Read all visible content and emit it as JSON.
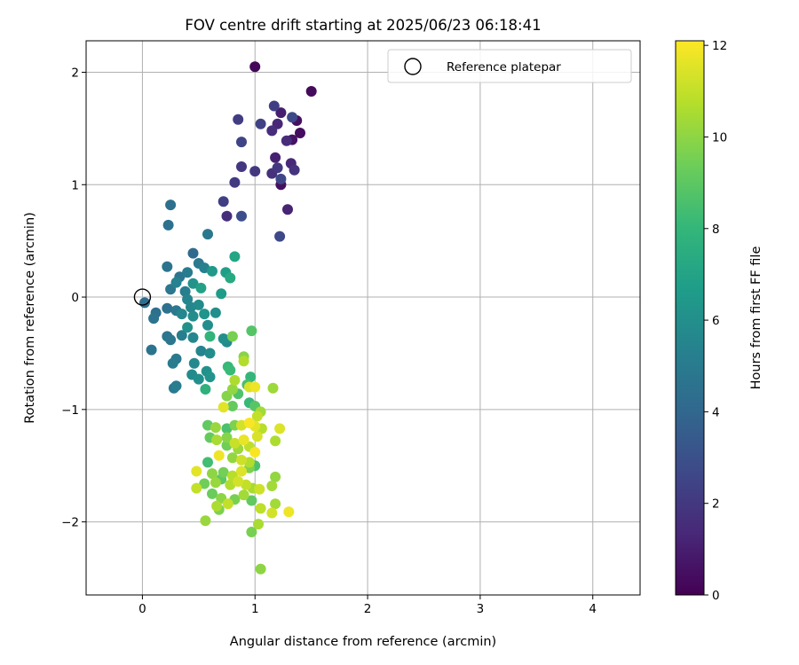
{
  "chart_data": {
    "type": "scatter",
    "title": "FOV centre drift starting at 2025/06/23 06:18:41",
    "xlabel": "Angular distance from reference (arcmin)",
    "ylabel": "Rotation from reference (arcmin)",
    "xlim": [
      -0.5,
      4.42
    ],
    "ylim": [
      -2.65,
      2.28
    ],
    "xticks": [
      0,
      1,
      2,
      3,
      4
    ],
    "yticks": [
      -2,
      -1,
      0,
      1,
      2
    ],
    "xtick_labels": [
      "0",
      "1",
      "2",
      "3",
      "4"
    ],
    "ytick_labels": [
      "−2",
      "−1",
      "0",
      "1",
      "2"
    ],
    "grid": true,
    "legend": {
      "label": "Reference platepar",
      "placement": "top-right",
      "marker": "open-circle"
    },
    "reference": {
      "x": 0,
      "y": 0
    },
    "colorbar": {
      "label": "Hours from first FF file",
      "range": [
        0,
        12.1
      ],
      "ticks": [
        0,
        2,
        4,
        6,
        8,
        10,
        12
      ],
      "tick_labels": [
        "0",
        "2",
        "4",
        "6",
        "8",
        "10",
        "12"
      ],
      "colormap": [
        "#440154",
        "#482878",
        "#3e4989",
        "#31688e",
        "#26828e",
        "#1f9e89",
        "#35b779",
        "#6ece58",
        "#b5de2b",
        "#fde725"
      ]
    },
    "points": [
      [
        1.0,
        2.05,
        0.2
      ],
      [
        1.5,
        1.83,
        0.3
      ],
      [
        1.4,
        1.46,
        0.4
      ],
      [
        1.37,
        1.57,
        0.5
      ],
      [
        1.33,
        1.4,
        0.6
      ],
      [
        1.23,
        1.0,
        0.5
      ],
      [
        1.23,
        1.64,
        1.0
      ],
      [
        1.17,
        1.7,
        2.3
      ],
      [
        1.2,
        1.54,
        1.3
      ],
      [
        1.15,
        1.48,
        1.6
      ],
      [
        1.05,
        1.54,
        2.4
      ],
      [
        1.28,
        1.39,
        1.5
      ],
      [
        1.33,
        1.6,
        2.7
      ],
      [
        1.35,
        1.13,
        1.8
      ],
      [
        1.32,
        1.19,
        1.4
      ],
      [
        1.18,
        1.24,
        1.1
      ],
      [
        1.2,
        1.15,
        2.0
      ],
      [
        1.15,
        1.1,
        1.7
      ],
      [
        1.23,
        1.05,
        2.6
      ],
      [
        1.0,
        1.12,
        2.0
      ],
      [
        0.88,
        1.16,
        1.9
      ],
      [
        0.85,
        1.58,
        2.2
      ],
      [
        0.88,
        1.38,
        2.5
      ],
      [
        0.82,
        1.02,
        2.1
      ],
      [
        0.72,
        0.85,
        2.3
      ],
      [
        0.88,
        0.72,
        2.9
      ],
      [
        0.75,
        0.72,
        1.6
      ],
      [
        1.29,
        0.78,
        1.2
      ],
      [
        1.22,
        0.54,
        2.7
      ],
      [
        0.25,
        0.82,
        4.4
      ],
      [
        0.23,
        0.64,
        4.5
      ],
      [
        0.58,
        0.56,
        4.8
      ],
      [
        0.45,
        0.39,
        4.2
      ],
      [
        0.82,
        0.36,
        7.1
      ],
      [
        0.22,
        0.27,
        4.6
      ],
      [
        0.4,
        0.22,
        5.0
      ],
      [
        0.5,
        0.3,
        4.9
      ],
      [
        0.55,
        0.26,
        5.3
      ],
      [
        0.62,
        0.23,
        6.5
      ],
      [
        0.74,
        0.22,
        6.8
      ],
      [
        0.78,
        0.17,
        7.3
      ],
      [
        0.33,
        0.18,
        4.7
      ],
      [
        0.3,
        0.13,
        5.4
      ],
      [
        0.45,
        0.12,
        6.2
      ],
      [
        0.52,
        0.08,
        6.9
      ],
      [
        0.25,
        0.07,
        4.8
      ],
      [
        0.38,
        0.05,
        5.1
      ],
      [
        0.7,
        0.03,
        6.6
      ],
      [
        0.4,
        -0.02,
        5.5
      ],
      [
        0.5,
        -0.07,
        5.8
      ],
      [
        0.43,
        -0.09,
        5.6
      ],
      [
        0.02,
        -0.05,
        4.3
      ],
      [
        0.12,
        -0.14,
        4.4
      ],
      [
        0.22,
        -0.1,
        4.5
      ],
      [
        0.3,
        -0.12,
        4.9
      ],
      [
        0.35,
        -0.15,
        5.6
      ],
      [
        0.45,
        -0.17,
        5.9
      ],
      [
        0.55,
        -0.15,
        6.3
      ],
      [
        0.65,
        -0.14,
        6.0
      ],
      [
        0.1,
        -0.19,
        4.6
      ],
      [
        0.58,
        -0.25,
        5.9
      ],
      [
        0.4,
        -0.27,
        6.1
      ],
      [
        0.6,
        -0.35,
        7.9
      ],
      [
        0.8,
        -0.35,
        9.6
      ],
      [
        0.72,
        -0.37,
        6.0
      ],
      [
        0.75,
        -0.4,
        5.8
      ],
      [
        0.22,
        -0.35,
        4.7
      ],
      [
        0.25,
        -0.38,
        4.8
      ],
      [
        0.35,
        -0.34,
        5.2
      ],
      [
        0.45,
        -0.36,
        5.6
      ],
      [
        0.97,
        -0.3,
        8.8
      ],
      [
        0.08,
        -0.47,
        4.6
      ],
      [
        0.3,
        -0.55,
        4.9
      ],
      [
        0.27,
        -0.59,
        5.0
      ],
      [
        0.52,
        -0.48,
        5.5
      ],
      [
        0.6,
        -0.5,
        5.9
      ],
      [
        0.46,
        -0.59,
        5.7
      ],
      [
        0.57,
        -0.66,
        6.1
      ],
      [
        0.6,
        -0.71,
        6.3
      ],
      [
        0.44,
        -0.69,
        5.8
      ],
      [
        0.5,
        -0.73,
        6.0
      ],
      [
        0.3,
        -0.79,
        5.1
      ],
      [
        0.28,
        -0.81,
        4.9
      ],
      [
        0.56,
        -0.82,
        7.7
      ],
      [
        0.78,
        -0.65,
        8.2
      ],
      [
        0.76,
        -0.62,
        8.1
      ],
      [
        0.9,
        -0.53,
        9.9
      ],
      [
        0.9,
        -0.57,
        10.7
      ],
      [
        0.96,
        -0.71,
        8.0
      ],
      [
        0.82,
        -0.74,
        10.6
      ],
      [
        0.93,
        -0.78,
        8.5
      ],
      [
        1.0,
        -0.8,
        11.8
      ],
      [
        1.16,
        -0.81,
        10.3
      ],
      [
        0.8,
        -0.82,
        10.1
      ],
      [
        0.85,
        -0.86,
        8.7
      ],
      [
        0.95,
        -0.8,
        11.4
      ],
      [
        0.75,
        -0.88,
        9.8
      ],
      [
        0.72,
        -0.98,
        11.6
      ],
      [
        0.8,
        -0.97,
        9.2
      ],
      [
        0.95,
        -0.94,
        8.1
      ],
      [
        1.0,
        -0.97,
        8.9
      ],
      [
        1.05,
        -1.02,
        10.4
      ],
      [
        1.02,
        -1.06,
        11.0
      ],
      [
        0.58,
        -1.14,
        9.1
      ],
      [
        0.65,
        -1.16,
        10.2
      ],
      [
        0.75,
        -1.17,
        8.6
      ],
      [
        0.82,
        -1.14,
        9.7
      ],
      [
        0.88,
        -1.14,
        11.3
      ],
      [
        0.95,
        -1.12,
        12.0
      ],
      [
        1.0,
        -1.15,
        11.6
      ],
      [
        1.06,
        -1.17,
        10.8
      ],
      [
        1.22,
        -1.17,
        11.5
      ],
      [
        0.6,
        -1.25,
        9.2
      ],
      [
        0.66,
        -1.27,
        10.5
      ],
      [
        0.75,
        -1.25,
        9.9
      ],
      [
        0.82,
        -1.3,
        11.1
      ],
      [
        0.9,
        -1.27,
        11.7
      ],
      [
        1.02,
        -1.24,
        11.4
      ],
      [
        1.18,
        -1.28,
        10.6
      ],
      [
        0.75,
        -1.32,
        9.4
      ],
      [
        0.85,
        -1.35,
        10.3
      ],
      [
        0.95,
        -1.33,
        10.9
      ],
      [
        1.0,
        -1.38,
        12.0
      ],
      [
        0.58,
        -1.47,
        8.4
      ],
      [
        0.68,
        -1.41,
        11.8
      ],
      [
        0.8,
        -1.43,
        10.1
      ],
      [
        0.88,
        -1.45,
        11.2
      ],
      [
        0.95,
        -1.47,
        10.7
      ],
      [
        0.48,
        -1.55,
        11.6
      ],
      [
        0.62,
        -1.57,
        10.0
      ],
      [
        0.72,
        -1.56,
        9.5
      ],
      [
        0.8,
        -1.59,
        10.8
      ],
      [
        0.88,
        -1.55,
        11.5
      ],
      [
        0.95,
        -1.52,
        9.7
      ],
      [
        1.0,
        -1.5,
        8.6
      ],
      [
        0.55,
        -1.66,
        9.4
      ],
      [
        0.65,
        -1.65,
        10.2
      ],
      [
        0.7,
        -1.62,
        9.0
      ],
      [
        0.78,
        -1.67,
        10.7
      ],
      [
        0.85,
        -1.64,
        11.3
      ],
      [
        0.92,
        -1.67,
        11.0
      ],
      [
        0.98,
        -1.7,
        10.5
      ],
      [
        1.04,
        -1.71,
        11.2
      ],
      [
        1.18,
        -1.6,
        10.1
      ],
      [
        1.15,
        -1.68,
        10.4
      ],
      [
        0.48,
        -1.7,
        11.0
      ],
      [
        0.62,
        -1.75,
        9.3
      ],
      [
        0.7,
        -1.79,
        10.0
      ],
      [
        0.76,
        -1.84,
        11.0
      ],
      [
        0.82,
        -1.8,
        9.6
      ],
      [
        0.9,
        -1.76,
        10.4
      ],
      [
        0.97,
        -1.81,
        9.1
      ],
      [
        1.05,
        -1.88,
        10.9
      ],
      [
        1.15,
        -1.92,
        11.3
      ],
      [
        1.3,
        -1.91,
        11.8
      ],
      [
        0.66,
        -1.86,
        10.6
      ],
      [
        0.68,
        -1.89,
        9.7
      ],
      [
        0.56,
        -1.99,
        10.2
      ],
      [
        0.97,
        -2.09,
        9.6
      ],
      [
        1.03,
        -2.02,
        10.5
      ],
      [
        1.05,
        -2.42,
        10.0
      ],
      [
        1.18,
        -1.84,
        10.4
      ]
    ]
  }
}
